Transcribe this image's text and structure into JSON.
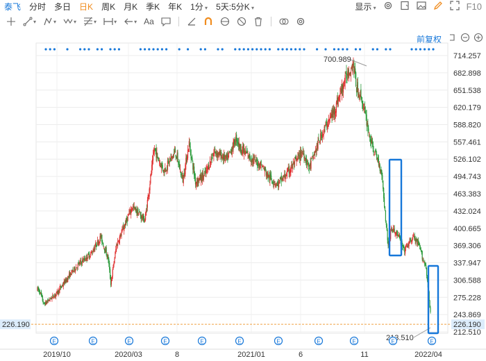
{
  "topbar": {
    "stock_name": "泰飞",
    "periods": [
      "分时",
      "多日",
      "日K",
      "周K",
      "月K",
      "季K",
      "年K",
      "1分",
      "5天:5分K"
    ],
    "active_period": "日K",
    "display_label": "显示",
    "f10_label": "F10"
  },
  "toolbar": {
    "font_label": "Aa",
    "adjust_label": "前复权"
  },
  "colors": {
    "up": "#e03030",
    "down": "#2a9a3a",
    "accent": "#1677d9",
    "active": "#f08c1e",
    "price_line": "#f0a040"
  },
  "chart_data": {
    "type": "candlestick",
    "y_ticks": [
      "714.257",
      "682.898",
      "651.538",
      "620.179",
      "588.820",
      "557.461",
      "526.102",
      "494.743",
      "463.383",
      "432.024",
      "400.665",
      "369.306",
      "337.947",
      "306.588",
      "275.228",
      "243.869",
      "212.510"
    ],
    "ylim": [
      212.51,
      714.257
    ],
    "x_labels": [
      "2019/10",
      "2020/03",
      "8",
      "2021/01",
      "6",
      "11",
      "2022/04"
    ],
    "current_price": "226.190",
    "max_label": "700.989",
    "min_label": "213.510",
    "event_marker_label": "E",
    "event_count": 12,
    "anchor_prices": [
      [
        0,
        290
      ],
      [
        4,
        285
      ],
      [
        10,
        262
      ],
      [
        30,
        282
      ],
      [
        55,
        322
      ],
      [
        65,
        335
      ],
      [
        85,
        355
      ],
      [
        100,
        385
      ],
      [
        112,
        345
      ],
      [
        116,
        300
      ],
      [
        125,
        370
      ],
      [
        150,
        440
      ],
      [
        170,
        415
      ],
      [
        185,
        545
      ],
      [
        190,
        530
      ],
      [
        200,
        505
      ],
      [
        218,
        540
      ],
      [
        230,
        488
      ],
      [
        240,
        555
      ],
      [
        250,
        485
      ],
      [
        265,
        498
      ],
      [
        280,
        540
      ],
      [
        300,
        525
      ],
      [
        315,
        565
      ],
      [
        320,
        548
      ],
      [
        340,
        525
      ],
      [
        355,
        515
      ],
      [
        365,
        495
      ],
      [
        380,
        480
      ],
      [
        395,
        500
      ],
      [
        420,
        540
      ],
      [
        430,
        510
      ],
      [
        450,
        572
      ],
      [
        470,
        615
      ],
      [
        480,
        648
      ],
      [
        490,
        680
      ],
      [
        500,
        700
      ],
      [
        505,
        655
      ],
      [
        512,
        640
      ],
      [
        520,
        600
      ],
      [
        525,
        572
      ],
      [
        530,
        548
      ],
      [
        540,
        520
      ],
      [
        545,
        500
      ],
      [
        550,
        430
      ],
      [
        555,
        370
      ],
      [
        560,
        400
      ],
      [
        570,
        390
      ],
      [
        580,
        360
      ],
      [
        595,
        385
      ],
      [
        605,
        365
      ],
      [
        610,
        345
      ],
      [
        615,
        330
      ],
      [
        622,
        245
      ]
    ]
  }
}
